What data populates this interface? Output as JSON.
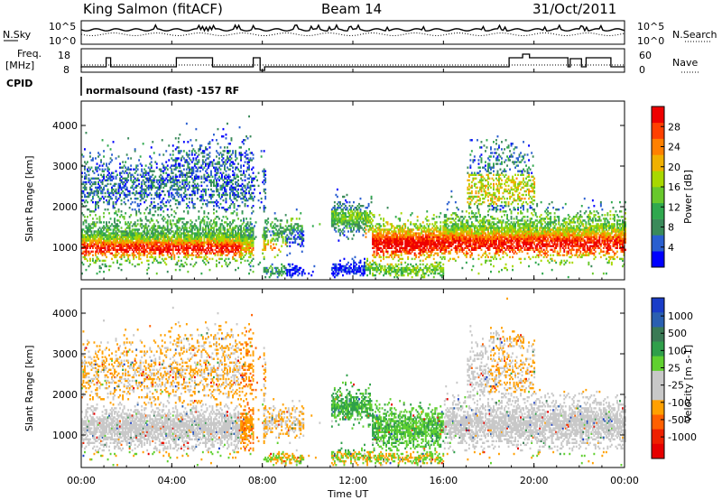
{
  "header": {
    "station": "King Salmon (fitACF)",
    "beam": "Beam 14",
    "date": "31/Oct/2011"
  },
  "top_panels": {
    "nsky_label": "N.Sky",
    "nsky_ticks": [
      "10^5",
      "10^0"
    ],
    "nsearch_label": "N.Search",
    "nsearch_ticks": [
      "10^5",
      "10^0"
    ],
    "freq_label_line1": "Freq.",
    "freq_label_line2": "[MHz]",
    "freq_ticks": [
      "18",
      "8"
    ],
    "nave_label": "Nave",
    "nave_ticks": [
      "60",
      "0"
    ],
    "cpid_label": "CPID",
    "cpid_text": "normalsound (fast) -157 RF"
  },
  "colors": {
    "power": [
      "#0000ff",
      "#2a5fd0",
      "#3a8a5a",
      "#2fa84e",
      "#68c82c",
      "#a8d800",
      "#f0b000",
      "#ff8000",
      "#ff4000",
      "#ee0000"
    ],
    "velocity": [
      "#1a3dc8",
      "#2a5fb0",
      "#3a7a55",
      "#2f9f4a",
      "#60d030",
      "#c8c8c8",
      "#c8c8c8",
      "#ffa000",
      "#ff6000",
      "#ee2000",
      "#e60000"
    ]
  },
  "chart_data": [
    {
      "type": "heatmap",
      "panel": "power",
      "ylabel": "Slant Range [km]",
      "y_ticks": [
        1000,
        2000,
        3000,
        4000
      ],
      "ylim": [
        200,
        4600
      ],
      "x_ticks": [
        "00:00",
        "04:00",
        "08:00",
        "12:00",
        "16:00",
        "20:00",
        "00:00"
      ],
      "xlim_hours": [
        0,
        24
      ],
      "colorbar_label": "Power [dB]",
      "colorbar_ticks": [
        4,
        8,
        12,
        16,
        20,
        24,
        28
      ],
      "colorbar_range": [
        0,
        32
      ]
    },
    {
      "type": "heatmap",
      "panel": "velocity",
      "ylabel": "Slant Range [km]",
      "y_ticks": [
        1000,
        2000,
        3000,
        4000
      ],
      "ylim": [
        200,
        4600
      ],
      "x_ticks": [
        "00:00",
        "04:00",
        "08:00",
        "12:00",
        "16:00",
        "20:00",
        "00:00"
      ],
      "xlim_hours": [
        0,
        24
      ],
      "xlabel": "Time UT",
      "colorbar_label": "Velocity [m s-1]",
      "colorbar_ticks": [
        "1000",
        "500",
        "100",
        "25",
        "-25",
        "-100",
        "-500",
        "-1000"
      ]
    }
  ]
}
